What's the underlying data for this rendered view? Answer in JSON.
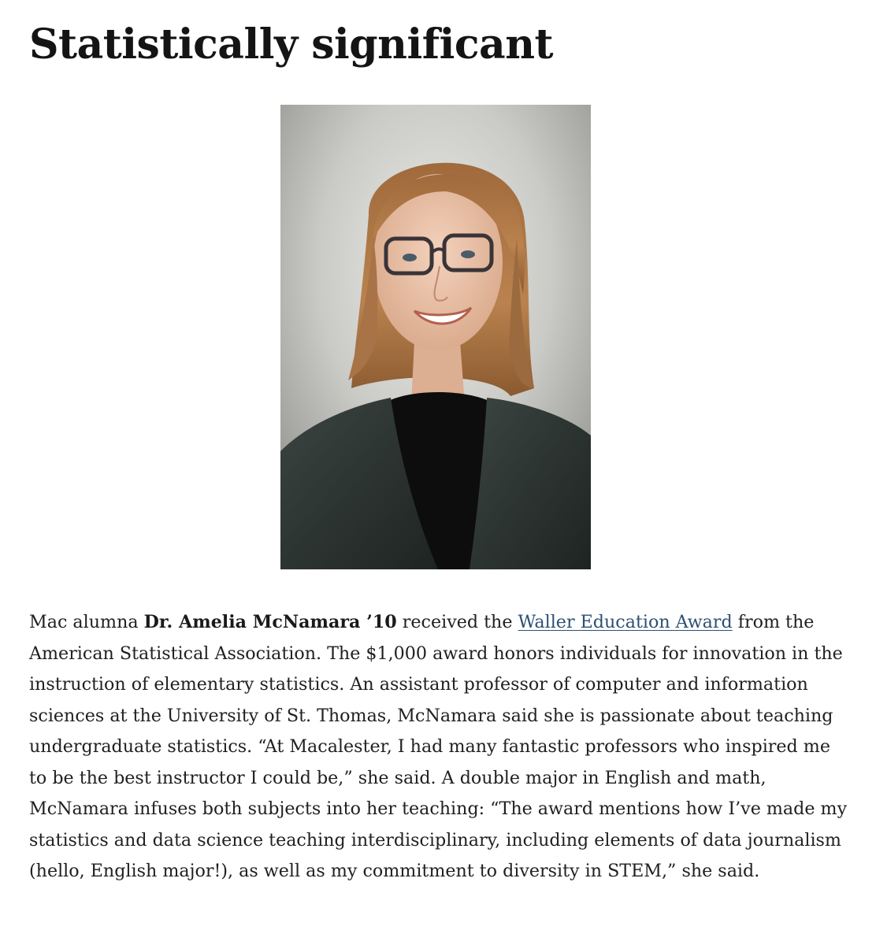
{
  "article": {
    "title": "Statistically significant",
    "photo_alt": "Portrait of Dr. Amelia McNamara",
    "body": {
      "intro": "Mac alumna ",
      "name": "Dr. Amelia McNamara ’10",
      "after_name": " received the ",
      "award_link": "Waller Education Award",
      "rest": " from the American Statistical Association. The $1,000 award honors individuals for innovation in the instruction of elementary statistics. An assistant professor of computer and information sciences at the University of St. Thomas, McNamara said she is passionate about teaching undergraduate statistics. “At Macalester, I had many fantastic professors who inspired me to be the best instructor I could be,” she said. A double major in English and math, McNamara infuses both subjects into her teaching: “The award mentions how I’ve made my statistics and data science teaching interdisciplinary, including elements of data journalism (hello, English major!), as well as my commitment to diversity in STEM,” she said."
    }
  }
}
